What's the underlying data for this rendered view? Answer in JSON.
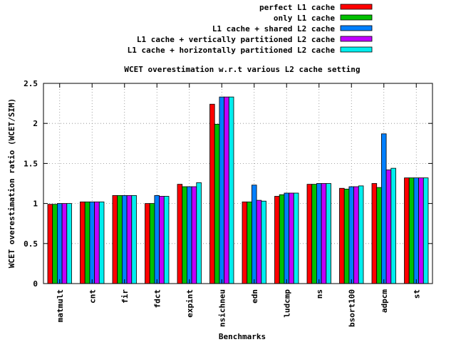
{
  "chart_data": {
    "type": "bar",
    "title": "WCET overestimation w.r.t various L2 cache setting",
    "xlabel": "Benchmarks",
    "ylabel": "WCET overestimation ratio (WCET/SIM)",
    "ylim": [
      0,
      2.5
    ],
    "yticks": [
      "0",
      "0.5",
      "1",
      "1.5",
      "2",
      "2.5"
    ],
    "grid": true,
    "legend_position": "top-right",
    "categories": [
      "matmult",
      "cnt",
      "fir",
      "fdct",
      "expint",
      "nsichneu",
      "edn",
      "ludcmp",
      "ns",
      "bsort100",
      "adpcm",
      "st"
    ],
    "series": [
      {
        "name": "perfect L1 cache",
        "color": "#ff0000",
        "values": [
          0.99,
          1.02,
          1.1,
          1.0,
          1.24,
          2.24,
          1.02,
          1.09,
          1.24,
          1.19,
          1.25,
          1.32
        ]
      },
      {
        "name": "only L1 cache",
        "color": "#00c000",
        "values": [
          0.99,
          1.02,
          1.1,
          1.0,
          1.21,
          1.99,
          1.02,
          1.11,
          1.24,
          1.18,
          1.2,
          1.32
        ]
      },
      {
        "name": "L1 cache + shared L2 cache",
        "color": "#0080ff",
        "values": [
          1.0,
          1.02,
          1.1,
          1.1,
          1.21,
          2.33,
          1.23,
          1.13,
          1.25,
          1.21,
          1.87,
          1.32
        ]
      },
      {
        "name": "L1 cache + vertically partitioned L2 cache",
        "color": "#c000ff",
        "values": [
          1.0,
          1.02,
          1.1,
          1.09,
          1.21,
          2.33,
          1.04,
          1.13,
          1.25,
          1.21,
          1.42,
          1.32
        ]
      },
      {
        "name": "L1 cache + horizontally partitioned L2 cache",
        "color": "#00eeee",
        "values": [
          1.0,
          1.02,
          1.1,
          1.09,
          1.26,
          2.33,
          1.03,
          1.13,
          1.25,
          1.22,
          1.44,
          1.32
        ]
      }
    ]
  }
}
